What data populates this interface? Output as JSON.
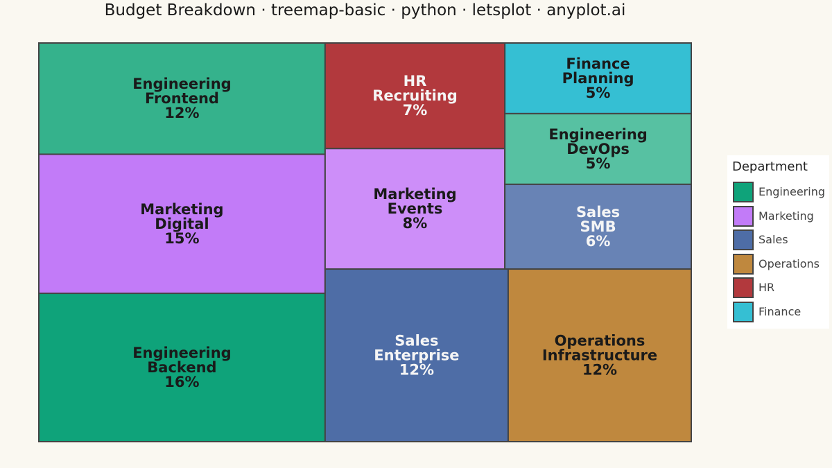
{
  "chart_data": {
    "type": "treemap",
    "title": "Budget Breakdown · treemap-basic · python · letsplot · anyplot.ai",
    "legend": {
      "title": "Department",
      "position": "right",
      "items": [
        {
          "label": "Engineering",
          "color": "#0FA37A"
        },
        {
          "label": "Marketing",
          "color": "#C27BF8"
        },
        {
          "label": "Sales",
          "color": "#4E6DA6"
        },
        {
          "label": "Operations",
          "color": "#BF883E"
        },
        {
          "label": "HR",
          "color": "#B2393D"
        },
        {
          "label": "Finance",
          "color": "#35BFD3"
        }
      ]
    },
    "tiles": [
      {
        "department": "Engineering",
        "name": "Backend",
        "percent_label": "16%",
        "value": 16,
        "fill": "#0FA37A",
        "text_color": "#1a1a1a"
      },
      {
        "department": "Marketing",
        "name": "Digital",
        "percent_label": "15%",
        "value": 15,
        "fill": "#C27BF8",
        "text_color": "#1a1a1a"
      },
      {
        "department": "Engineering",
        "name": "Frontend",
        "percent_label": "12%",
        "value": 12,
        "fill": "#35B28C",
        "text_color": "#1a1a1a"
      },
      {
        "department": "Sales",
        "name": "Enterprise",
        "percent_label": "12%",
        "value": 12,
        "fill": "#4E6DA6",
        "text_color": "#F5F5F5"
      },
      {
        "department": "Operations",
        "name": "Infrastructure",
        "percent_label": "12%",
        "value": 12,
        "fill": "#BF883E",
        "text_color": "#1a1a1a"
      },
      {
        "department": "Marketing",
        "name": "Events",
        "percent_label": "8%",
        "value": 8,
        "fill": "#CD8EF9",
        "text_color": "#1a1a1a"
      },
      {
        "department": "HR",
        "name": "Recruiting",
        "percent_label": "7%",
        "value": 7,
        "fill": "#B2393D",
        "text_color": "#F5F5F5"
      },
      {
        "department": "Sales",
        "name": "SMB",
        "percent_label": "6%",
        "value": 6,
        "fill": "#6883B5",
        "text_color": "#F5F5F5"
      },
      {
        "department": "Finance",
        "name": "Planning",
        "percent_label": "5%",
        "value": 5,
        "fill": "#35BFD3",
        "text_color": "#1a1a1a"
      },
      {
        "department": "Engineering",
        "name": "DevOps",
        "percent_label": "5%",
        "value": 5,
        "fill": "#57C1A2",
        "text_color": "#1a1a1a"
      }
    ]
  }
}
